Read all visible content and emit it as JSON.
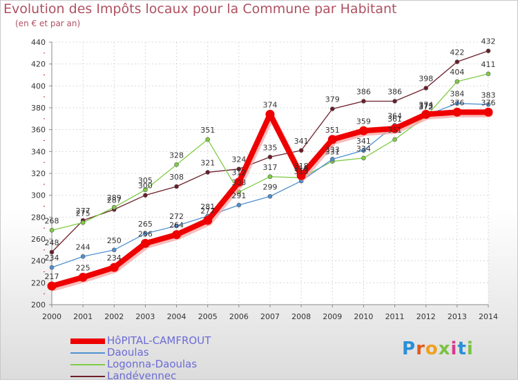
{
  "chart_data": {
    "type": "line",
    "title": "Evolution des Impôts locaux pour la Commune par Habitant",
    "subtitle": "(en € et par an)",
    "x": [
      "2000",
      "2001",
      "2002",
      "2003",
      "2004",
      "2005",
      "2006",
      "2007",
      "2008",
      "2009",
      "2010",
      "2011",
      "2012",
      "2013",
      "2014"
    ],
    "ylim": [
      200,
      440
    ],
    "yticks": [
      "200",
      "220",
      "240",
      "260",
      "280",
      "300",
      "320",
      "340",
      "360",
      "380",
      "400",
      "420",
      "440"
    ],
    "series": [
      {
        "name": "HôPITAL-CAMFROUT",
        "color": "#ee0000",
        "values": [
          217,
          225,
          234,
          256,
          264,
          277,
          312,
          374,
          318,
          351,
          359,
          361,
          374,
          376,
          376
        ]
      },
      {
        "name": "Daoulas",
        "color": "#4f8fcf",
        "values": [
          234,
          244,
          250,
          265,
          272,
          281,
          291,
          299,
          313,
          333,
          341,
          364,
          373,
          384,
          383
        ]
      },
      {
        "name": "Logonna-Daoulas",
        "color": "#7fcc44",
        "values": [
          268,
          275,
          289,
          305,
          328,
          351,
          303,
          317,
          316,
          331,
          334,
          351,
          372,
          404,
          411
        ]
      },
      {
        "name": "Landévennec",
        "color": "#6b1e2a",
        "values": [
          248,
          277,
          287,
          300,
          308,
          321,
          324,
          335,
          341,
          379,
          386,
          386,
          398,
          422,
          432
        ]
      }
    ]
  },
  "logo": {
    "text": "Proxiti"
  }
}
